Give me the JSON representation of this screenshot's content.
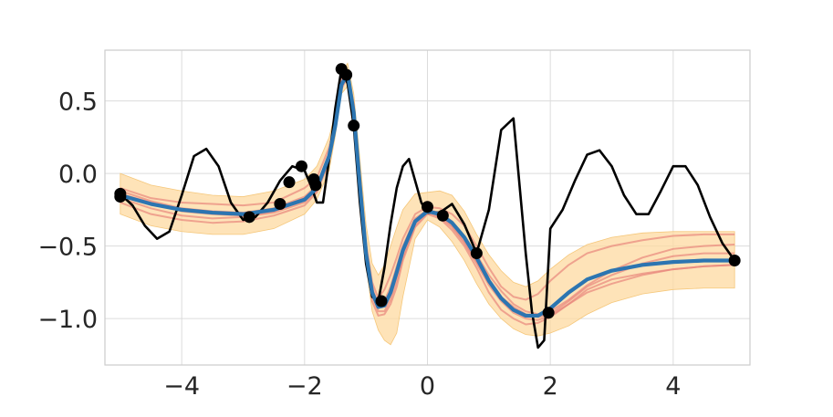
{
  "chart_data": {
    "type": "line",
    "title": "",
    "xlabel": "",
    "ylabel": "",
    "xlim": [
      -5.25,
      5.25
    ],
    "ylim": [
      -1.32,
      0.85
    ],
    "grid": true,
    "xticks": [
      -4,
      -2,
      0,
      2,
      4
    ],
    "yticks": [
      0.5,
      0.0,
      -0.5,
      -1.0
    ],
    "xtick_labels": [
      "−4",
      "−2",
      "0",
      "2",
      "4"
    ],
    "ytick_labels": [
      "0.5",
      "0.0",
      "−0.5",
      "−1.0"
    ],
    "colors": {
      "true_function": "#000000",
      "observations": "#000000",
      "mean": "#2c75b1",
      "confidence_band": "#fdd9a0",
      "samples": "#e8867c"
    },
    "confidence_band": {
      "x": [
        -5.0,
        -4.5,
        -4.0,
        -3.5,
        -3.0,
        -2.5,
        -2.0,
        -1.8,
        -1.6,
        -1.5,
        -1.4,
        -1.3,
        -1.2,
        -1.1,
        -1.0,
        -0.9,
        -0.8,
        -0.7,
        -0.6,
        -0.5,
        -0.4,
        -0.2,
        0.0,
        0.2,
        0.4,
        0.6,
        0.8,
        1.0,
        1.2,
        1.4,
        1.6,
        1.8,
        2.0,
        2.3,
        2.6,
        3.0,
        3.5,
        4.0,
        4.5,
        5.0
      ],
      "upper": [
        0.0,
        -0.08,
        -0.12,
        -0.15,
        -0.16,
        -0.12,
        -0.04,
        0.05,
        0.25,
        0.42,
        0.7,
        0.76,
        0.55,
        0.1,
        -0.35,
        -0.62,
        -0.7,
        -0.63,
        -0.5,
        -0.37,
        -0.25,
        -0.14,
        -0.13,
        -0.12,
        -0.15,
        -0.26,
        -0.42,
        -0.56,
        -0.67,
        -0.75,
        -0.78,
        -0.74,
        -0.66,
        -0.56,
        -0.49,
        -0.44,
        -0.41,
        -0.4,
        -0.4,
        -0.4
      ],
      "lower": [
        -0.28,
        -0.36,
        -0.4,
        -0.42,
        -0.42,
        -0.38,
        -0.28,
        -0.18,
        0.02,
        0.26,
        0.55,
        0.6,
        0.3,
        -0.2,
        -0.63,
        -0.95,
        -1.08,
        -1.15,
        -1.18,
        -1.1,
        -0.85,
        -0.45,
        -0.32,
        -0.37,
        -0.47,
        -0.6,
        -0.76,
        -0.9,
        -1.0,
        -1.07,
        -1.11,
        -1.12,
        -1.1,
        -1.05,
        -0.97,
        -0.89,
        -0.83,
        -0.8,
        -0.79,
        -0.79
      ]
    },
    "series": [
      {
        "role": "true_function",
        "x": [
          -5.0,
          -4.8,
          -4.6,
          -4.4,
          -4.2,
          -4.0,
          -3.8,
          -3.6,
          -3.4,
          -3.2,
          -3.0,
          -2.8,
          -2.6,
          -2.4,
          -2.2,
          -2.0,
          -1.9,
          -1.8,
          -1.7,
          -1.6,
          -1.5,
          -1.4,
          -1.3,
          -1.2,
          -1.1,
          -1.0,
          -0.9,
          -0.8,
          -0.7,
          -0.6,
          -0.5,
          -0.4,
          -0.3,
          -0.2,
          -0.1,
          0.0,
          0.2,
          0.4,
          0.6,
          0.8,
          1.0,
          1.2,
          1.4,
          1.6,
          1.7,
          1.8,
          1.9,
          2.0,
          2.2,
          2.4,
          2.6,
          2.8,
          3.0,
          3.2,
          3.4,
          3.6,
          3.8,
          4.0,
          4.2,
          4.4,
          4.6,
          4.8,
          5.0
        ],
        "y": [
          -0.14,
          -0.22,
          -0.36,
          -0.45,
          -0.4,
          -0.15,
          0.12,
          0.17,
          0.05,
          -0.2,
          -0.32,
          -0.3,
          -0.2,
          -0.05,
          0.05,
          0.02,
          -0.08,
          -0.2,
          -0.2,
          0.1,
          0.45,
          0.72,
          0.62,
          0.33,
          -0.2,
          -0.62,
          -0.85,
          -0.88,
          -0.65,
          -0.35,
          -0.1,
          0.05,
          0.1,
          -0.05,
          -0.2,
          -0.27,
          -0.27,
          -0.21,
          -0.35,
          -0.55,
          -0.25,
          0.3,
          0.38,
          -0.55,
          -0.95,
          -1.2,
          -1.15,
          -0.38,
          -0.25,
          -0.05,
          0.13,
          0.16,
          0.05,
          -0.15,
          -0.28,
          -0.28,
          -0.12,
          0.05,
          0.05,
          -0.08,
          -0.3,
          -0.48,
          -0.6
        ]
      },
      {
        "role": "mean",
        "x": [
          -5.0,
          -4.5,
          -4.0,
          -3.5,
          -3.0,
          -2.5,
          -2.0,
          -1.8,
          -1.6,
          -1.5,
          -1.4,
          -1.3,
          -1.2,
          -1.1,
          -1.0,
          -0.9,
          -0.8,
          -0.7,
          -0.6,
          -0.5,
          -0.4,
          -0.2,
          0.0,
          0.2,
          0.4,
          0.6,
          0.8,
          1.0,
          1.2,
          1.4,
          1.6,
          1.8,
          2.0,
          2.3,
          2.6,
          3.0,
          3.5,
          4.0,
          4.5,
          5.0
        ],
        "y": [
          -0.15,
          -0.21,
          -0.25,
          -0.27,
          -0.28,
          -0.25,
          -0.18,
          -0.1,
          0.12,
          0.33,
          0.61,
          0.69,
          0.42,
          -0.08,
          -0.55,
          -0.82,
          -0.92,
          -0.91,
          -0.82,
          -0.68,
          -0.53,
          -0.33,
          -0.26,
          -0.28,
          -0.34,
          -0.44,
          -0.58,
          -0.74,
          -0.86,
          -0.94,
          -0.98,
          -0.98,
          -0.93,
          -0.82,
          -0.73,
          -0.67,
          -0.63,
          -0.61,
          -0.6,
          -0.6
        ]
      },
      {
        "role": "sample",
        "x": [
          -5.0,
          -4.5,
          -4.0,
          -3.5,
          -3.0,
          -2.5,
          -2.0,
          -1.8,
          -1.6,
          -1.5,
          -1.4,
          -1.3,
          -1.2,
          -1.1,
          -1.0,
          -0.9,
          -0.8,
          -0.7,
          -0.6,
          -0.5,
          -0.4,
          -0.2,
          0.0,
          0.2,
          0.4,
          0.6,
          0.8,
          1.0,
          1.2,
          1.4,
          1.6,
          1.8,
          2.0,
          2.3,
          2.6,
          3.0,
          3.5,
          4.0,
          4.5,
          5.0
        ],
        "y": [
          -0.1,
          -0.17,
          -0.2,
          -0.21,
          -0.22,
          -0.2,
          -0.1,
          -0.03,
          0.18,
          0.36,
          0.66,
          0.7,
          0.48,
          0.0,
          -0.48,
          -0.75,
          -0.86,
          -0.8,
          -0.7,
          -0.58,
          -0.45,
          -0.28,
          -0.23,
          -0.24,
          -0.28,
          -0.36,
          -0.5,
          -0.65,
          -0.78,
          -0.85,
          -0.87,
          -0.83,
          -0.74,
          -0.63,
          -0.55,
          -0.5,
          -0.46,
          -0.43,
          -0.42,
          -0.42
        ]
      },
      {
        "role": "sample",
        "x": [
          -5.0,
          -4.5,
          -4.0,
          -3.5,
          -3.0,
          -2.5,
          -2.0,
          -1.8,
          -1.6,
          -1.5,
          -1.4,
          -1.3,
          -1.2,
          -1.1,
          -1.0,
          -0.9,
          -0.8,
          -0.7,
          -0.6,
          -0.5,
          -0.4,
          -0.2,
          0.0,
          0.2,
          0.4,
          0.6,
          0.8,
          1.0,
          1.2,
          1.4,
          1.6,
          1.8,
          2.0,
          2.3,
          2.6,
          3.0,
          3.5,
          4.0,
          4.5,
          5.0
        ],
        "y": [
          -0.2,
          -0.28,
          -0.32,
          -0.34,
          -0.33,
          -0.29,
          -0.22,
          -0.13,
          0.08,
          0.3,
          0.58,
          0.67,
          0.38,
          -0.12,
          -0.58,
          -0.88,
          -0.98,
          -0.97,
          -0.9,
          -0.78,
          -0.6,
          -0.37,
          -0.28,
          -0.31,
          -0.39,
          -0.5,
          -0.65,
          -0.82,
          -0.94,
          -1.0,
          -1.04,
          -1.03,
          -0.99,
          -0.9,
          -0.8,
          -0.73,
          -0.69,
          -0.66,
          -0.64,
          -0.63
        ]
      },
      {
        "role": "sample",
        "x": [
          -5.0,
          -4.5,
          -4.0,
          -3.5,
          -3.0,
          -2.5,
          -2.0,
          -1.8,
          -1.6,
          -1.5,
          -1.4,
          -1.3,
          -1.2,
          -1.1,
          -1.0,
          -0.9,
          -0.8,
          -0.7,
          -0.6,
          -0.5,
          -0.4,
          -0.2,
          0.0,
          0.2,
          0.4,
          0.6,
          0.8,
          1.0,
          1.2,
          1.4,
          1.6,
          1.8,
          2.0,
          2.3,
          2.6,
          3.0,
          3.5,
          4.0,
          4.5,
          5.0
        ],
        "y": [
          -0.12,
          -0.19,
          -0.24,
          -0.26,
          -0.27,
          -0.24,
          -0.16,
          -0.08,
          0.14,
          0.34,
          0.63,
          0.71,
          0.45,
          -0.05,
          -0.52,
          -0.79,
          -0.9,
          -0.88,
          -0.78,
          -0.64,
          -0.5,
          -0.31,
          -0.25,
          -0.27,
          -0.33,
          -0.43,
          -0.56,
          -0.7,
          -0.81,
          -0.9,
          -0.95,
          -0.97,
          -0.95,
          -0.87,
          -0.77,
          -0.67,
          -0.58,
          -0.52,
          -0.5,
          -0.49
        ]
      },
      {
        "role": "sample",
        "x": [
          -5.0,
          -4.5,
          -4.0,
          -3.5,
          -3.0,
          -2.5,
          -2.0,
          -1.8,
          -1.6,
          -1.5,
          -1.4,
          -1.3,
          -1.2,
          -1.1,
          -1.0,
          -0.9,
          -0.8,
          -0.7,
          -0.6,
          -0.5,
          -0.4,
          -0.2,
          0.0,
          0.2,
          0.4,
          0.6,
          0.8,
          1.0,
          1.2,
          1.4,
          1.6,
          1.8,
          2.0,
          2.3,
          2.6,
          3.0,
          3.5,
          4.0,
          4.5,
          5.0
        ],
        "y": [
          -0.17,
          -0.24,
          -0.29,
          -0.31,
          -0.3,
          -0.27,
          -0.2,
          -0.12,
          0.1,
          0.31,
          0.6,
          0.66,
          0.4,
          -0.1,
          -0.56,
          -0.84,
          -0.95,
          -0.95,
          -0.87,
          -0.74,
          -0.58,
          -0.36,
          -0.27,
          -0.3,
          -0.37,
          -0.48,
          -0.62,
          -0.77,
          -0.88,
          -0.96,
          -1.0,
          -1.01,
          -0.98,
          -0.9,
          -0.82,
          -0.76,
          -0.7,
          -0.66,
          -0.64,
          -0.63
        ]
      },
      {
        "role": "sample",
        "x": [
          -5.0,
          -4.5,
          -4.0,
          -3.5,
          -3.0,
          -2.5,
          -2.0,
          -1.8,
          -1.6,
          -1.5,
          -1.4,
          -1.3,
          -1.2,
          -1.1,
          -1.0,
          -0.9,
          -0.8,
          -0.7,
          -0.6,
          -0.5,
          -0.4,
          -0.2,
          0.0,
          0.2,
          0.4,
          0.6,
          0.8,
          1.0,
          1.2,
          1.4,
          1.6,
          1.8,
          2.0,
          2.3,
          2.6,
          3.0,
          3.5,
          4.0,
          4.5,
          5.0
        ],
        "y": [
          -0.14,
          -0.2,
          -0.26,
          -0.28,
          -0.29,
          -0.26,
          -0.17,
          -0.1,
          0.11,
          0.33,
          0.62,
          0.7,
          0.44,
          -0.06,
          -0.53,
          -0.8,
          -0.91,
          -0.9,
          -0.82,
          -0.67,
          -0.52,
          -0.32,
          -0.26,
          -0.29,
          -0.36,
          -0.47,
          -0.61,
          -0.75,
          -0.85,
          -0.92,
          -0.97,
          -0.99,
          -0.97,
          -0.88,
          -0.78,
          -0.7,
          -0.62,
          -0.57,
          -0.55,
          -0.55
        ]
      }
    ],
    "observations": {
      "x": [
        -5.0,
        -5.0,
        -2.9,
        -2.4,
        -2.25,
        -2.05,
        -1.85,
        -1.82,
        -1.4,
        -1.32,
        -1.2,
        -0.75,
        0.0,
        0.25,
        0.8,
        1.97,
        5.0
      ],
      "y": [
        -0.14,
        -0.16,
        -0.3,
        -0.21,
        -0.06,
        0.05,
        -0.04,
        -0.08,
        0.72,
        0.68,
        0.33,
        -0.88,
        -0.23,
        -0.29,
        -0.55,
        -0.96,
        -0.6
      ]
    }
  }
}
